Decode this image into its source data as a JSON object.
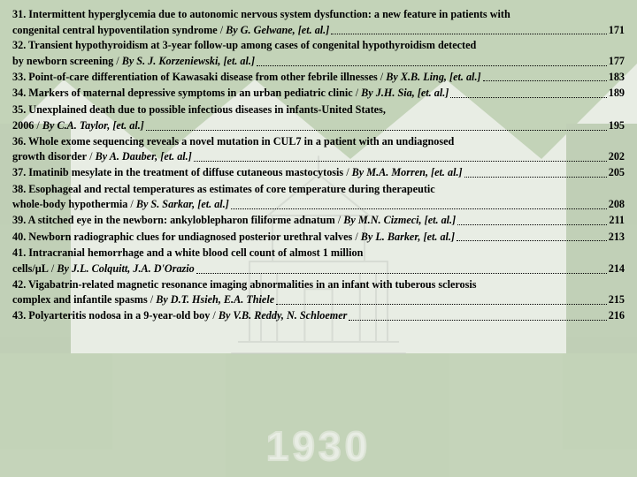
{
  "background": {
    "year": "1930",
    "primary_color": "#5a8a3a",
    "bg_color": "#e8ede4"
  },
  "entries": [
    {
      "num": "31",
      "title": "Intermittent hyperglycemia due to autonomic nervous system dysfunction: a new feature in patients with congenital central hypoventilation syndrome",
      "authors": "By G. Gelwane, [et. al.]",
      "page": "171",
      "wrap": true,
      "split": 108
    },
    {
      "num": "32",
      "title": "Transient hypothyroidism at 3-year follow-up among cases of congenital hypothyroidism detected by newborn screening",
      "authors": "By S. J. Korzeniewski, [et. al.]",
      "page": "177",
      "wrap": true,
      "split": 98
    },
    {
      "num": "33",
      "title": "Point-of-care differentiation of Kawasaki disease from other febrile illnesses",
      "authors": "By X.B. Ling, [et. al.]",
      "page": "183",
      "wrap": false
    },
    {
      "num": "34",
      "title": "Markers of maternal depressive symptoms in an urban pediatric clinic",
      "authors": "By J.H. Sia, [et. al.]",
      "page": "189",
      "wrap": false
    },
    {
      "num": "35",
      "title": "Unexplained death due to possible infectious diseases in infants-United States, 2006",
      "authors": "By C.A. Taylor, [et. al.]",
      "page": "195",
      "wrap": true,
      "split": 999
    },
    {
      "num": "36",
      "title": "Whole exome sequencing reveals a novel mutation in CUL7 in a patient with an undiagnosed growth disorder",
      "authors": "By A. Dauber, [et. al.]",
      "page": "202",
      "wrap": true,
      "split": 94
    },
    {
      "num": "37",
      "title": "Imatinib mesylate in the treatment of diffuse cutaneous mastocytosis",
      "authors": "By M.A. Morren, [et. al.]",
      "page": "205",
      "wrap": false
    },
    {
      "num": "38",
      "title": "Esophageal and rectal temperatures as estimates of core temperature during therapeutic whole-body hypothermia",
      "authors": "By S. Sarkar, [et. al.]",
      "page": "208",
      "wrap": true,
      "split": 100
    },
    {
      "num": "39",
      "title": "A stitched eye in the newborn: ankyloblepharon filiforme adnatum",
      "authors": "By M.N. Cizmeci, [et. al.]",
      "page": "211",
      "wrap": false
    },
    {
      "num": "40",
      "title": "Newborn radiographic clues for undiagnosed posterior urethral valves",
      "authors": "By L. Barker, [et. al.]",
      "page": "213",
      "wrap": false
    },
    {
      "num": "41",
      "title": "Intracranial hemorrhage and a white blood cell count of almost 1 million cells/µL",
      "authors": "By J.L. Colquitt, J.A. D'Orazio",
      "page": "214",
      "wrap": true,
      "split": 999
    },
    {
      "num": "42",
      "title": "Vigabatrin-related magnetic resonance imaging abnormalities in an infant with tuberous sclerosis complex and infantile spasms",
      "authors": "By D.T. Hsieh, E.A. Thiele",
      "page": "215",
      "wrap": true,
      "split": 104
    },
    {
      "num": "43",
      "title": "Polyarteritis nodosa in a 9-year-old boy",
      "authors": "By V.B.  Reddy, N. Schloemer",
      "page": "216",
      "wrap": false
    }
  ]
}
